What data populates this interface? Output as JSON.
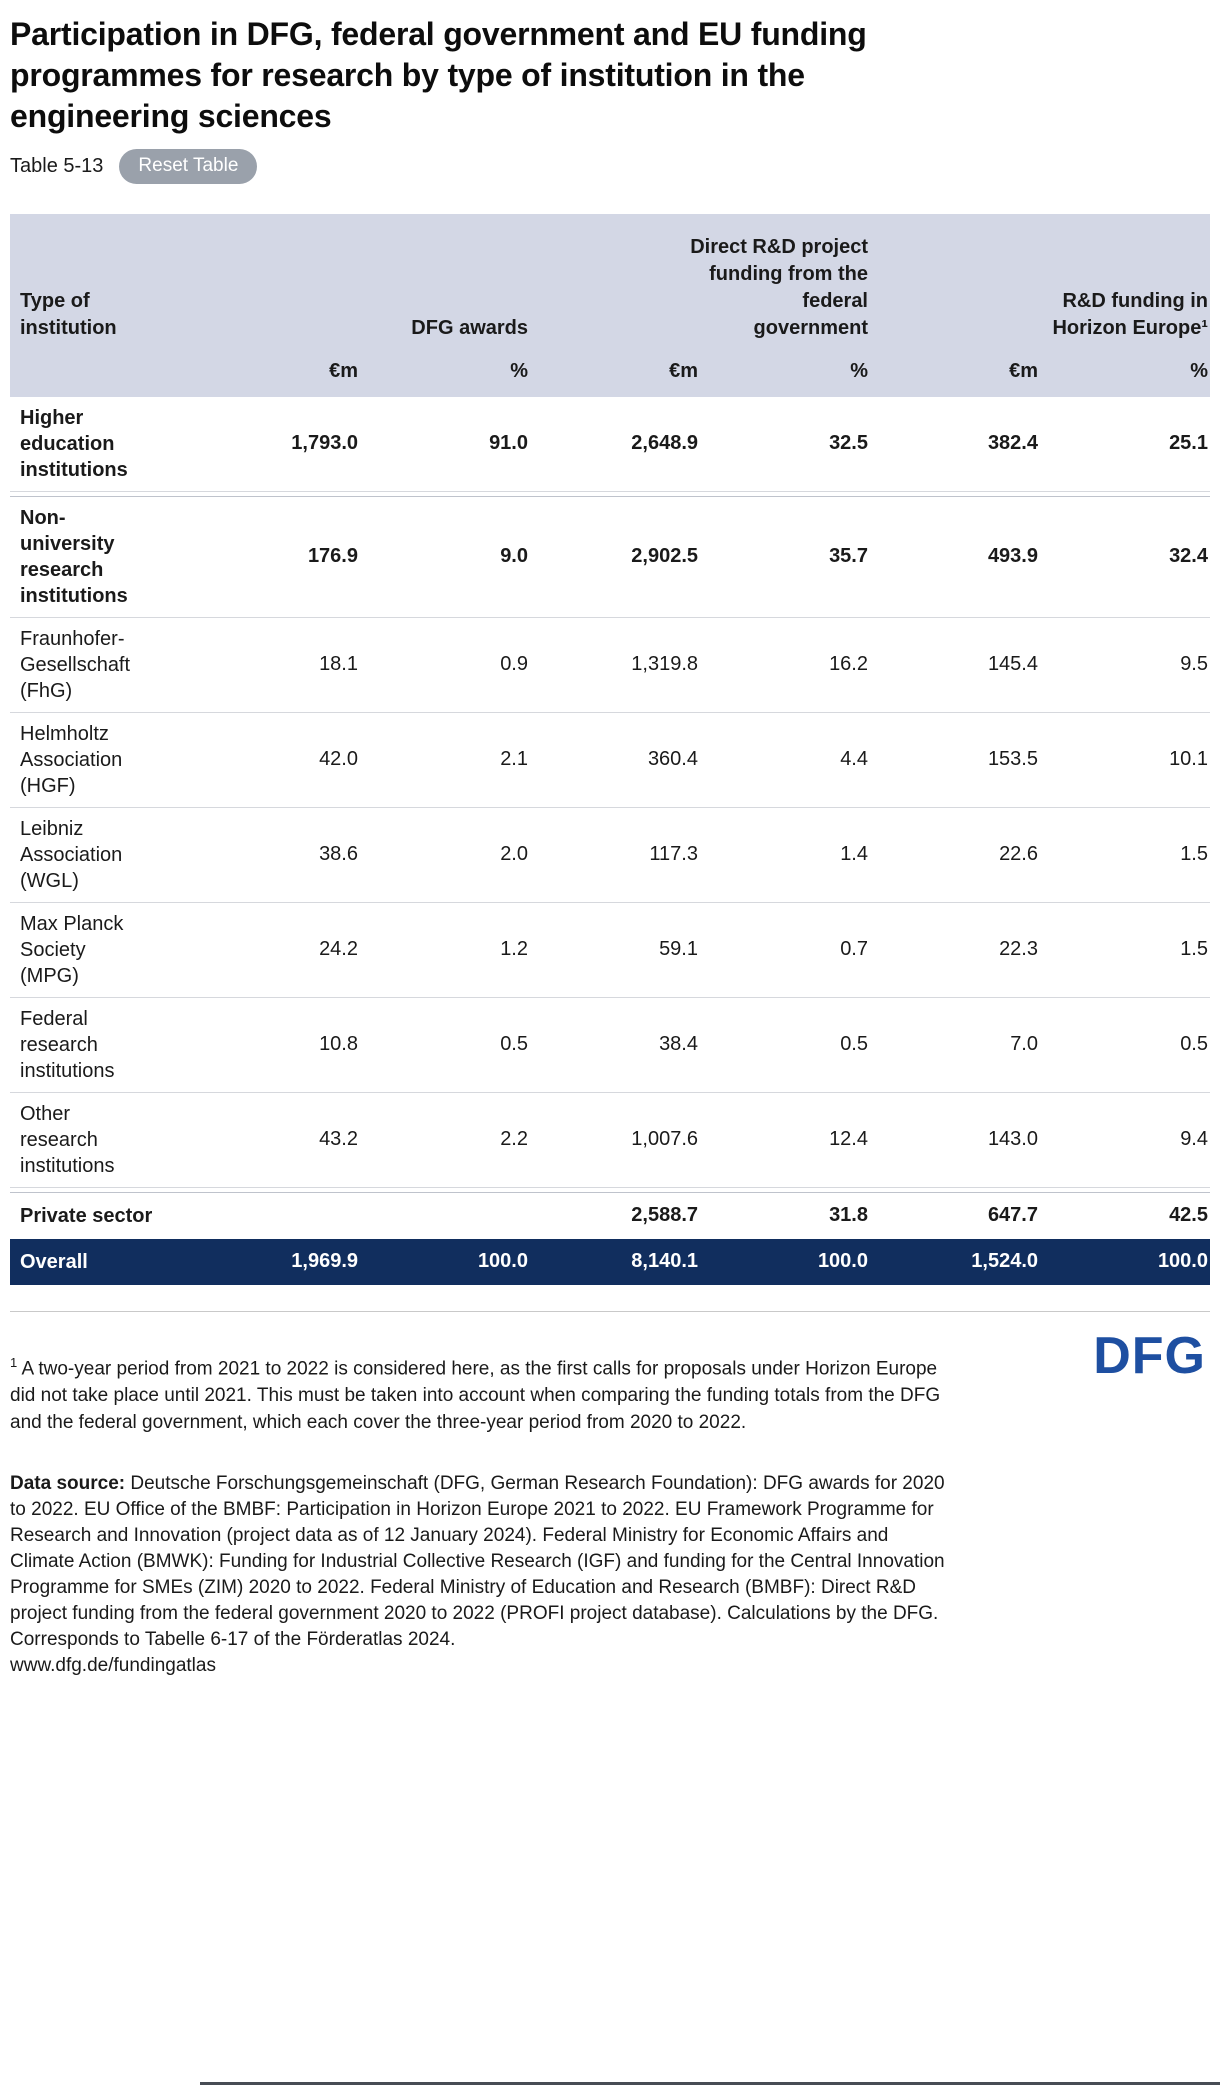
{
  "page": {
    "title": "Participation in DFG, federal government and EU funding\nprogrammes for research by type of institution in the\nengineering sciences",
    "table_ref": "Table 5-13",
    "reset_button_label": "Reset Table"
  },
  "table": {
    "header": {
      "type_col": "Type of\ninstitution",
      "groups": [
        "DFG awards",
        "Direct R&D project\nfunding from the\nfederal\ngovernment",
        "R&D funding in\nHorizon Europe¹"
      ],
      "units": [
        "€m",
        "%",
        "€m",
        "%",
        "€m",
        "%"
      ]
    },
    "rows": [
      {
        "label": "Higher\neducation\ninstitutions",
        "values": [
          "1,793.0",
          "91.0",
          "2,648.9",
          "32.5",
          "382.4",
          "25.1"
        ]
      },
      {
        "label": "Non-\nuniversity\nresearch\ninstitutions",
        "values": [
          "176.9",
          "9.0",
          "2,902.5",
          "35.7",
          "493.9",
          "32.4"
        ]
      },
      {
        "label": "Fraunhofer-\nGesellschaft\n(FhG)",
        "values": [
          "18.1",
          "0.9",
          "1,319.8",
          "16.2",
          "145.4",
          "9.5"
        ]
      },
      {
        "label": "Helmholtz\nAssociation\n(HGF)",
        "values": [
          "42.0",
          "2.1",
          "360.4",
          "4.4",
          "153.5",
          "10.1"
        ]
      },
      {
        "label": "Leibniz\nAssociation\n(WGL)",
        "values": [
          "38.6",
          "2.0",
          "117.3",
          "1.4",
          "22.6",
          "1.5"
        ]
      },
      {
        "label": "Max Planck\nSociety\n(MPG)",
        "values": [
          "24.2",
          "1.2",
          "59.1",
          "0.7",
          "22.3",
          "1.5"
        ]
      },
      {
        "label": "Federal\nresearch\ninstitutions",
        "values": [
          "10.8",
          "0.5",
          "38.4",
          "0.5",
          "7.0",
          "0.5"
        ]
      },
      {
        "label": "Other\nresearch\ninstitutions",
        "values": [
          "43.2",
          "2.2",
          "1,007.6",
          "12.4",
          "143.0",
          "9.4"
        ]
      },
      {
        "label": "Private sector",
        "values": [
          "",
          "",
          "2,588.7",
          "31.8",
          "647.7",
          "42.5"
        ]
      },
      {
        "label": "Overall",
        "values": [
          "1,969.9",
          "100.0",
          "8,140.1",
          "100.0",
          "1,524.0",
          "100.0"
        ]
      }
    ]
  },
  "footer": {
    "footnote_marker": "1",
    "footnote_text": " A two-year period from 2021 to 2022 is considered here, as the first calls for proposals under Horizon Europe did not take place until 2021. This must be taken into account when comparing the funding totals from the DFG and the federal government, which each cover the three-year period from 2020 to 2022.",
    "source_label": "Data source:",
    "source_text": " Deutsche Forschungsgemeinschaft (DFG, German Research Foundation): DFG awards for 2020 to 2022. EU Office of the BMBF: Participation in Horizon Europe 2021 to 2022. EU Framework Programme for Research and Innovation (project data as of 12 January 2024). Federal Ministry for Economic Affairs and Climate Action (BMWK): Funding for Industrial Collective Research (IGF) and funding for the Central Innovation Programme for SMEs (ZIM) 2020 to 2022. Federal Ministry of Education and Research (BMBF): Direct R&D project funding from the federal government 2020 to 2022 (PROFI project database). Calculations by the DFG. Corresponds to Tabelle 6-17 of the Förderatlas 2024.",
    "source_url": "www.dfg.de/fundingatlas",
    "logo_text": "DFG"
  },
  "colors": {
    "header_background": "#d3d7e5",
    "overall_row_background": "#112e5e",
    "logo_blue": "#1e4fa1",
    "reset_button_gray": "#9aa1ab"
  },
  "chart_data": {
    "type": "table",
    "title": "Participation in DFG, federal government and EU funding programmes for research by type of institution in the engineering sciences",
    "column_groups": [
      "DFG awards",
      "Direct R&D project funding from the federal government",
      "R&D funding in Horizon Europe (1)"
    ],
    "columns": [
      "Type of institution",
      "DFG awards €m",
      "DFG awards %",
      "Federal direct R&D project funding €m",
      "Federal direct R&D project funding %",
      "Horizon Europe R&D funding €m",
      "Horizon Europe R&D funding %"
    ],
    "rows": [
      [
        "Higher education institutions",
        1793.0,
        91.0,
        2648.9,
        32.5,
        382.4,
        25.1
      ],
      [
        "Non-university research institutions",
        176.9,
        9.0,
        2902.5,
        35.7,
        493.9,
        32.4
      ],
      [
        "Fraunhofer-Gesellschaft (FhG)",
        18.1,
        0.9,
        1319.8,
        16.2,
        145.4,
        9.5
      ],
      [
        "Helmholtz Association (HGF)",
        42.0,
        2.1,
        360.4,
        4.4,
        153.5,
        10.1
      ],
      [
        "Leibniz Association (WGL)",
        38.6,
        2.0,
        117.3,
        1.4,
        22.6,
        1.5
      ],
      [
        "Max Planck Society (MPG)",
        24.2,
        1.2,
        59.1,
        0.7,
        22.3,
        1.5
      ],
      [
        "Federal research institutions",
        10.8,
        0.5,
        38.4,
        0.5,
        7.0,
        0.5
      ],
      [
        "Other research institutions",
        43.2,
        2.2,
        1007.6,
        12.4,
        143.0,
        9.4
      ],
      [
        "Private sector",
        null,
        null,
        2588.7,
        31.8,
        647.7,
        42.5
      ],
      [
        "Overall",
        1969.9,
        100.0,
        8140.1,
        100.0,
        1524.0,
        100.0
      ]
    ]
  }
}
